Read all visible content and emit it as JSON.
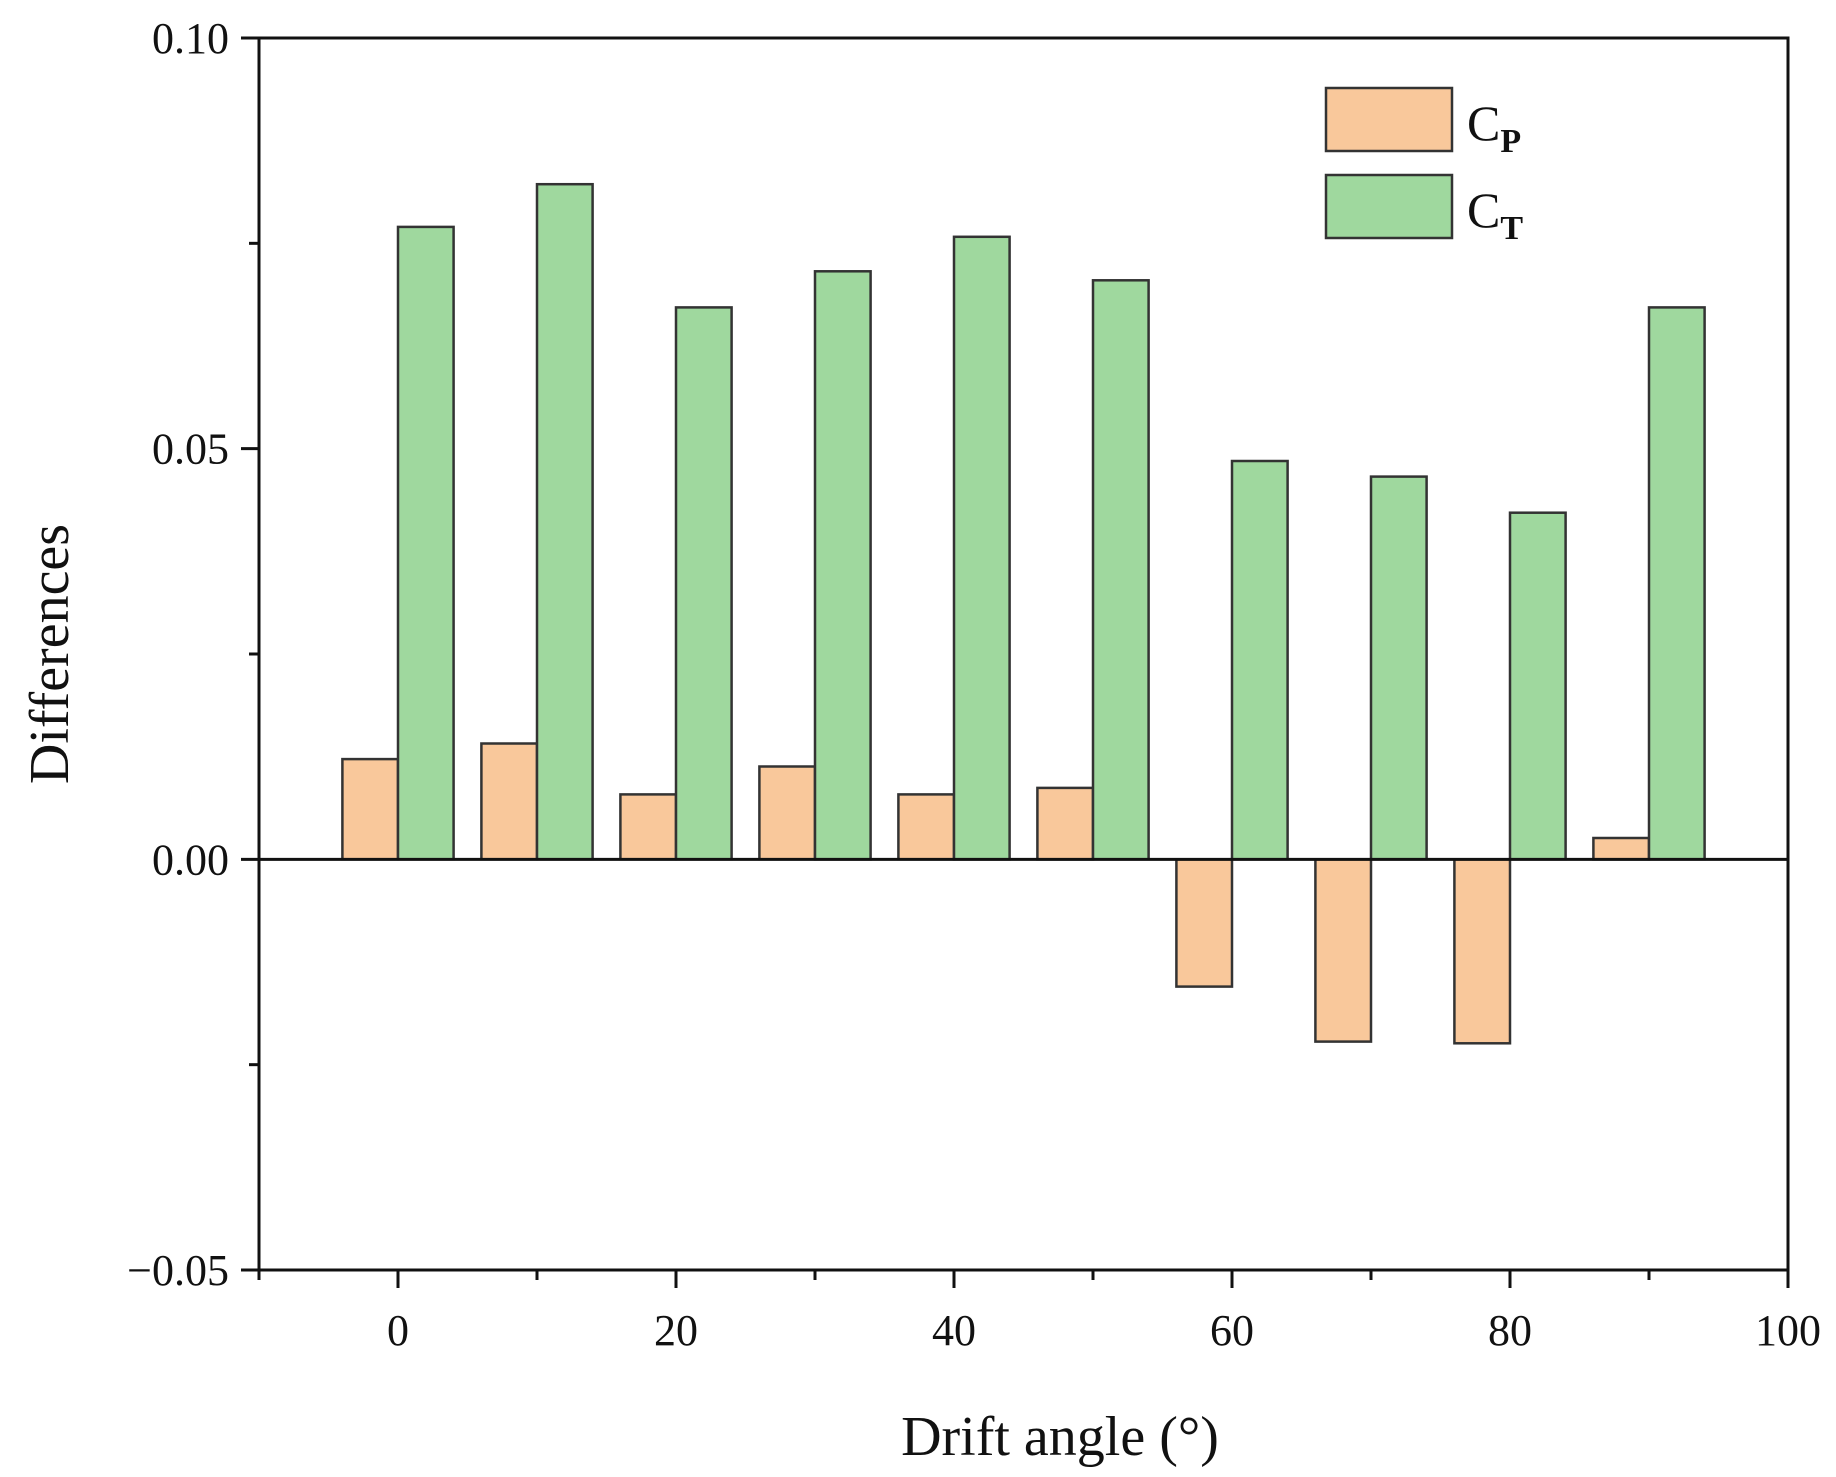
{
  "chart_data": {
    "type": "bar",
    "title": "",
    "xlabel": "Drift angle (°)",
    "ylabel": "Differences",
    "xlim": [
      -10,
      100
    ],
    "ylim": [
      -0.05,
      0.1
    ],
    "x": [
      0,
      10,
      20,
      30,
      40,
      50,
      60,
      70,
      80,
      90
    ],
    "x_ticks": [
      0,
      20,
      40,
      60,
      80,
      100
    ],
    "x_tick_labels": [
      "0",
      "20",
      "40",
      "60",
      "80",
      "100"
    ],
    "y_ticks": [
      -0.05,
      0,
      0.05,
      0.1
    ],
    "y_tick_labels": [
      "−0.05",
      "0.00",
      "0.05",
      "0.10"
    ],
    "grid": false,
    "legend_position": "top-right",
    "series": [
      {
        "name": "CP",
        "label_main": "C",
        "label_sub": "P",
        "color": "#f9c89b",
        "values": [
          0.0122,
          0.0141,
          0.0079,
          0.0113,
          0.0079,
          0.0087,
          -0.0155,
          -0.0222,
          -0.0224,
          0.0026
        ]
      },
      {
        "name": "CT",
        "label_main": "C",
        "label_sub": "T",
        "color": "#9fd89e",
        "values": [
          0.077,
          0.0822,
          0.0672,
          0.0716,
          0.0758,
          0.0705,
          0.0485,
          0.0466,
          0.0422,
          0.0672
        ]
      }
    ]
  }
}
